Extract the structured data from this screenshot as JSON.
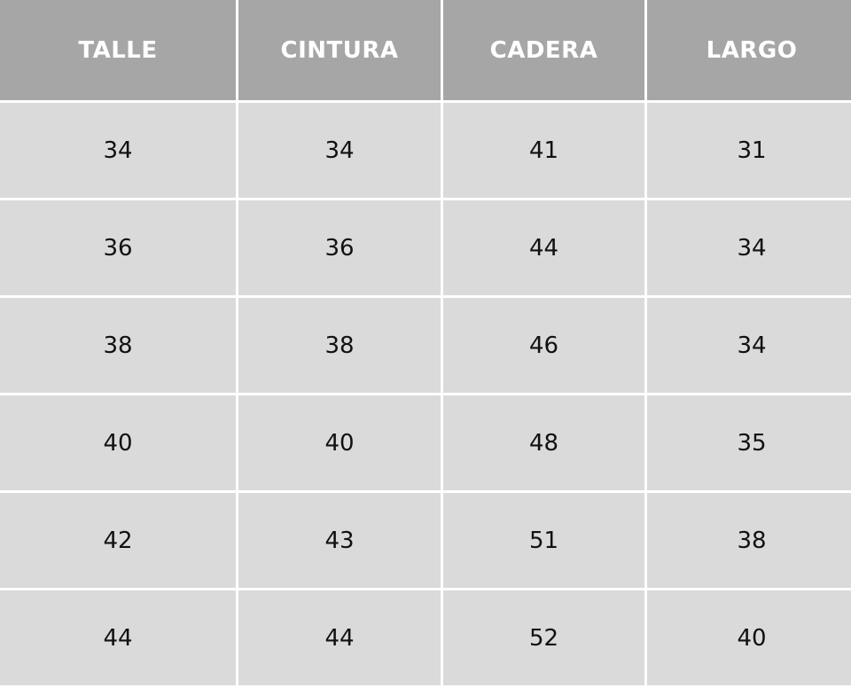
{
  "table": {
    "headers": [
      "TALLE",
      "CINTURA",
      "CADERA",
      "LARGO"
    ],
    "rows": [
      [
        "34",
        "34",
        "41",
        "31"
      ],
      [
        "36",
        "36",
        "44",
        "34"
      ],
      [
        "38",
        "38",
        "46",
        "34"
      ],
      [
        "40",
        "40",
        "48",
        "35"
      ],
      [
        "42",
        "43",
        "51",
        "38"
      ],
      [
        "44",
        "44",
        "52",
        "40"
      ]
    ]
  },
  "colors": {
    "header_bg": "#a6a6a6",
    "cell_bg": "#dadada",
    "grid_lines": "#ffffff"
  }
}
